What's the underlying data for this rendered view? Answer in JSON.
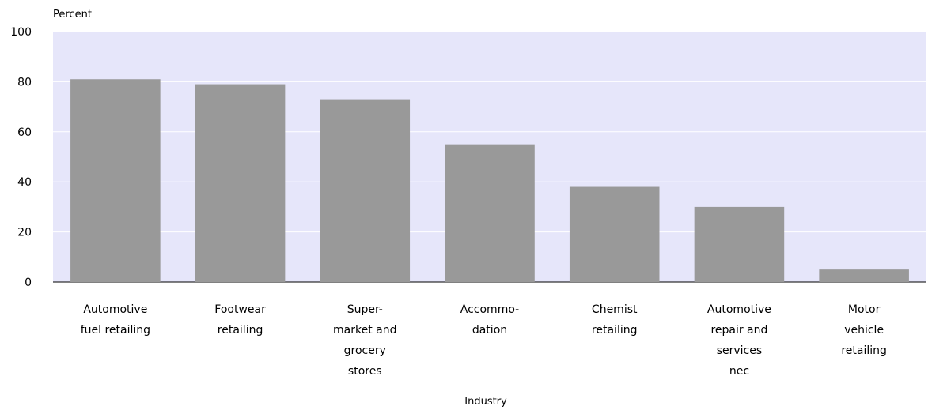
{
  "chart_data": {
    "type": "bar",
    "xlabel": "Industry",
    "ylabel": "Percent",
    "ylim": [
      0,
      100
    ],
    "yticks": [
      0,
      20,
      40,
      60,
      80,
      100
    ],
    "grid": true,
    "categories": [
      [
        "Automotive",
        "fuel retailing"
      ],
      [
        "Footwear",
        "retailing"
      ],
      [
        "Super-",
        "market and",
        "grocery",
        "stores"
      ],
      [
        "Accommo-",
        "dation"
      ],
      [
        "Chemist",
        "retailing"
      ],
      [
        "Automotive",
        "repair and",
        "services",
        "nec"
      ],
      [
        "Motor",
        "vehicle",
        "retailing"
      ]
    ],
    "values": [
      81,
      79,
      73,
      55,
      38,
      30,
      5
    ],
    "colors": {
      "plot_background": "#e6e6fa",
      "bar": "#999999",
      "gridline": "#ffffff"
    }
  }
}
